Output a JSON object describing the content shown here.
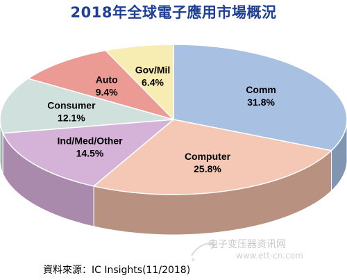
{
  "title": "2018年全球電子應用市場概況",
  "source": "資料來源：IC Insights(11/2018)",
  "watermark": {
    "line1": "电子变压器资讯网",
    "line2": "www.ett-cn.com"
  },
  "chart_data": {
    "type": "pie",
    "title": "2018年全球電子應用市場概況",
    "unit": "%",
    "slices": [
      {
        "name": "Comm",
        "value": 31.8,
        "label": "31.8%",
        "color": "#a8c1e3",
        "side_color": "#7f95b2"
      },
      {
        "name": "Computer",
        "value": 25.8,
        "label": "25.8%",
        "color": "#f4c8b4",
        "side_color": "#b89180"
      },
      {
        "name": "Ind/Med/Other",
        "value": 14.5,
        "label": "14.5%",
        "color": "#d5b3d8",
        "side_color": "#a98aad"
      },
      {
        "name": "Consumer",
        "value": 12.1,
        "label": "12.1%",
        "color": "#cfe0dd",
        "side_color": "#a3b4b0"
      },
      {
        "name": "Auto",
        "value": 9.4,
        "label": "9.4%",
        "color": "#eb9b93",
        "side_color": "#bb7770"
      },
      {
        "name": "Gov/Mil",
        "value": 6.4,
        "label": "6.4%",
        "color": "#f7ecb1",
        "side_color": "#c9bf8a"
      }
    ]
  }
}
